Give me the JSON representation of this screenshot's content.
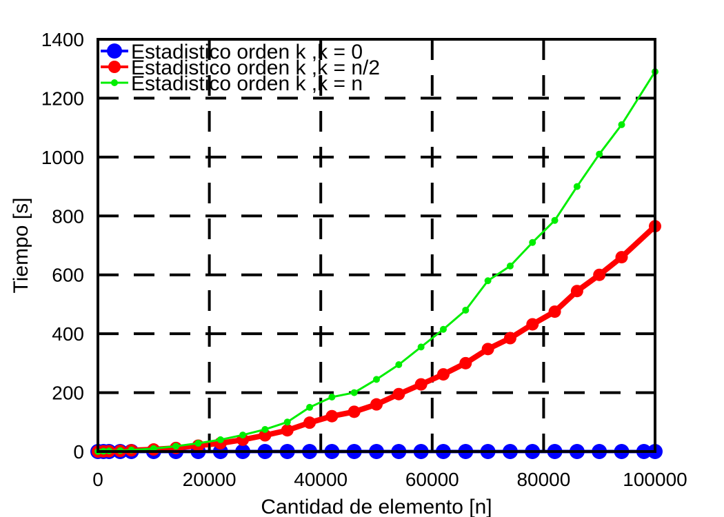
{
  "chart_data": {
    "type": "line",
    "title": "",
    "xlabel": "Cantidad de elemento [n]",
    "ylabel": "Tiempo [s]",
    "xlim": [
      0,
      100000
    ],
    "ylim": [
      0,
      1400
    ],
    "xticks": [
      0,
      20000,
      40000,
      60000,
      80000,
      100000
    ],
    "yticks": [
      0,
      200,
      400,
      600,
      800,
      1000,
      1200,
      1400
    ],
    "xtick_labels": [
      "0",
      "20000",
      "40000",
      "60000",
      "80000",
      "100000"
    ],
    "ytick_labels": [
      "0",
      "200",
      "400",
      "600",
      "800",
      "1000",
      "1200",
      "1400"
    ],
    "grid": true,
    "legend_position": "top-left",
    "series": [
      {
        "name": "Estadistico orden k ,k = 0",
        "color": "#0000ff",
        "x": [
          0,
          1000,
          2000,
          4000,
          6000,
          10000,
          14000,
          18000,
          22000,
          26000,
          30000,
          34000,
          38000,
          42000,
          46000,
          50000,
          54000,
          58000,
          62000,
          66000,
          70000,
          74000,
          78000,
          82000,
          86000,
          90000,
          94000,
          98000,
          100000
        ],
        "y": [
          0,
          0,
          0,
          0,
          0,
          0,
          0,
          0,
          0,
          0,
          0,
          0,
          0,
          0,
          0,
          0,
          0,
          0,
          0,
          0,
          0,
          0,
          0,
          0,
          0,
          0,
          0,
          0,
          0
        ]
      },
      {
        "name": "Estadistico orden k ,k = n/2",
        "color": "#ff0000",
        "x": [
          0,
          1000,
          2000,
          4000,
          6000,
          10000,
          14000,
          18000,
          22000,
          26000,
          30000,
          34000,
          38000,
          42000,
          46000,
          50000,
          54000,
          58000,
          62000,
          66000,
          70000,
          74000,
          78000,
          82000,
          86000,
          90000,
          94000,
          100000
        ],
        "y": [
          0,
          0.5,
          1,
          2,
          4,
          7,
          12,
          20,
          28,
          40,
          55,
          72,
          98,
          120,
          135,
          160,
          195,
          228,
          262,
          300,
          348,
          385,
          432,
          475,
          545,
          600,
          660,
          765
        ]
      },
      {
        "name": "Estadistico orden k ,k = n",
        "color": "#00ee00",
        "x": [
          0,
          1000,
          2000,
          4000,
          6000,
          10000,
          14000,
          18000,
          22000,
          26000,
          30000,
          34000,
          38000,
          42000,
          46000,
          50000,
          54000,
          58000,
          62000,
          66000,
          70000,
          74000,
          78000,
          82000,
          86000,
          90000,
          94000,
          100000
        ],
        "y": [
          0,
          1,
          2,
          3,
          5,
          10,
          18,
          28,
          40,
          56,
          75,
          100,
          150,
          185,
          200,
          245,
          295,
          355,
          415,
          480,
          580,
          630,
          710,
          785,
          900,
          1010,
          1110,
          1290
        ]
      }
    ]
  }
}
